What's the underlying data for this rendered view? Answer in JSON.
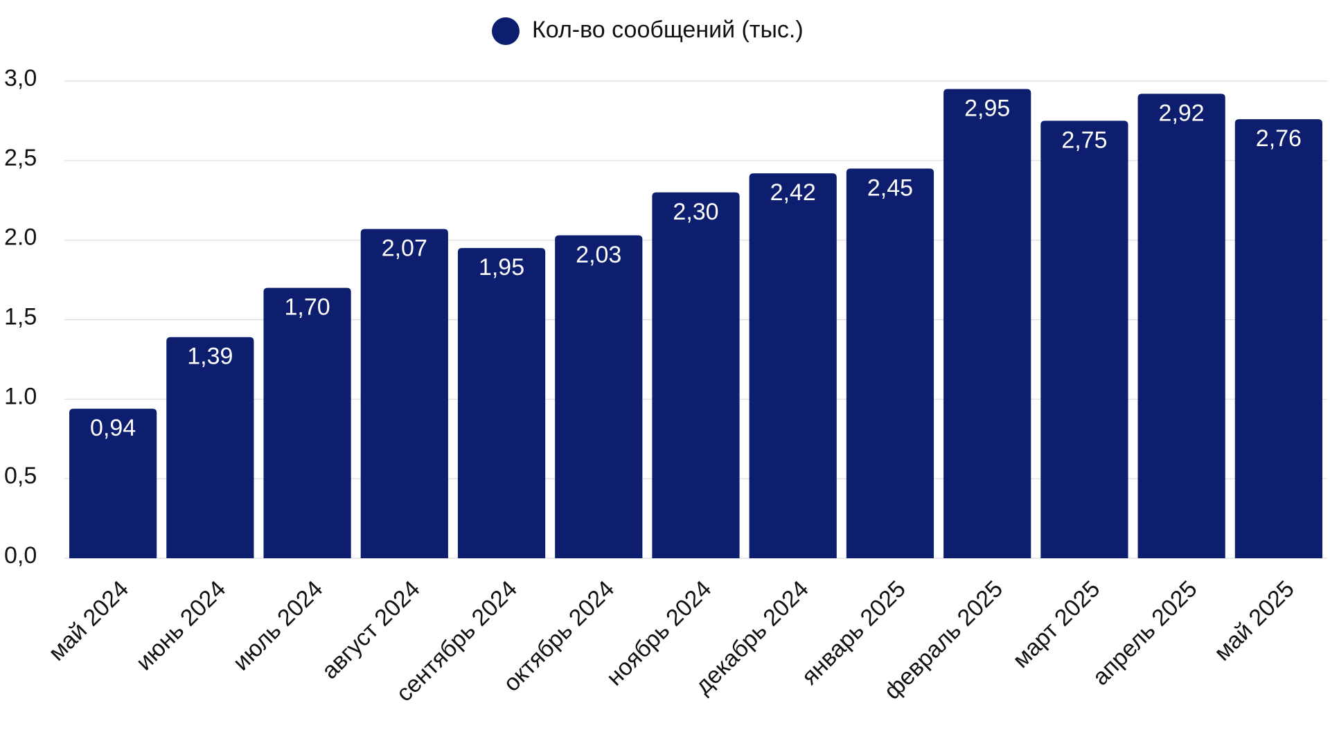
{
  "chart_data": {
    "type": "bar",
    "categories": [
      "май 2024",
      "июнь 2024",
      "июль 2024",
      "август 2024",
      "сентябрь 2024",
      "октябрь 2024",
      "ноябрь 2024",
      "декабрь 2024",
      "январь 2025",
      "февраль 2025",
      "март 2025",
      "апрель 2025",
      "май 2025"
    ],
    "series": [
      {
        "name": "Кол-во сообщений (тыс.)",
        "color": "#0d1e6e",
        "values": [
          0.94,
          1.39,
          1.7,
          2.07,
          1.95,
          2.03,
          2.3,
          2.42,
          2.45,
          2.95,
          2.75,
          2.92,
          2.76
        ],
        "value_labels": [
          "0,94",
          "1,39",
          "1,70",
          "2,07",
          "1,95",
          "2,03",
          "2,30",
          "2,42",
          "2,45",
          "2,95",
          "2,75",
          "2,92",
          "2,76"
        ]
      }
    ],
    "ylim": [
      0,
      3
    ],
    "yticks": [
      {
        "value": 0,
        "label": "0,0"
      },
      {
        "value": 0.5,
        "label": "0,5"
      },
      {
        "value": 1,
        "label": "1.0"
      },
      {
        "value": 1.5,
        "label": "1,5"
      },
      {
        "value": 2,
        "label": "2.0"
      },
      {
        "value": 2.5,
        "label": "2,5"
      },
      {
        "value": 3,
        "label": "3,0"
      }
    ],
    "grid": true,
    "legend": "top"
  }
}
